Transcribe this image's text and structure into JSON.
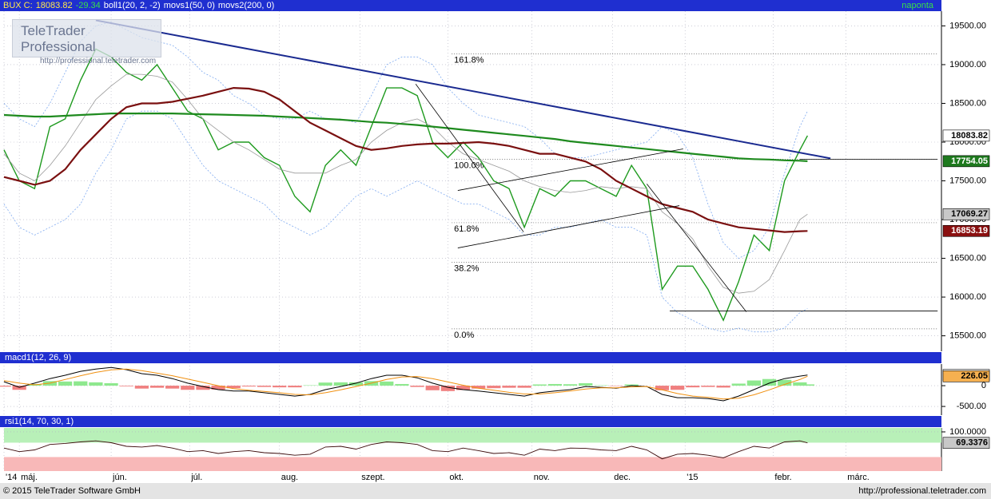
{
  "chart_data": {
    "type": "financial",
    "header": {
      "instrument": "BUX C:",
      "change": -29.34,
      "indicators": [
        "boll1(20, 2, -2)",
        "movs1(50, 0)",
        "movs2(200, 0)"
      ],
      "period": "naponta"
    },
    "x": [
      0,
      4,
      8,
      12,
      16,
      20,
      24,
      28,
      32,
      36,
      40,
      44,
      48,
      52,
      56,
      60,
      64,
      68,
      72,
      76,
      80,
      84,
      88,
      92,
      96,
      100,
      104,
      108,
      112,
      116,
      120,
      124,
      128,
      132,
      136,
      140,
      144,
      148,
      152,
      156,
      160,
      164,
      168,
      172,
      176,
      180,
      184,
      188,
      192,
      196,
      200,
      204,
      208,
      210
    ],
    "xlim": [
      0,
      245
    ],
    "xticks": [
      {
        "value": 0,
        "label": "'14"
      },
      {
        "value": 4,
        "label": "máj."
      },
      {
        "value": 28,
        "label": "jún."
      },
      {
        "value": 48.5,
        "label": "júl."
      },
      {
        "value": 72,
        "label": "aug."
      },
      {
        "value": 93,
        "label": "szept."
      },
      {
        "value": 116,
        "label": "okt."
      },
      {
        "value": 138,
        "label": "nov."
      },
      {
        "value": 159,
        "label": "dec."
      },
      {
        "value": 178,
        "label": "'15"
      },
      {
        "value": 201,
        "label": "febr."
      },
      {
        "value": 220,
        "label": "márc."
      }
    ],
    "grid": true,
    "panels": [
      {
        "type": "line",
        "ylim": [
          15300,
          19690
        ],
        "yticks": [
          {
            "value": 15500,
            "label": "15500.00"
          },
          {
            "value": 16000,
            "label": "16000.00"
          },
          {
            "value": 16500,
            "label": "16500.00"
          },
          {
            "value": 17000,
            "label": "17000.00"
          },
          {
            "value": 17500,
            "label": "17500.00"
          },
          {
            "value": 18000,
            "label": "18000.00"
          },
          {
            "value": 18500,
            "label": "18500.00"
          },
          {
            "value": 19000,
            "label": "19000.00"
          },
          {
            "value": 19500,
            "label": "19500.00"
          }
        ],
        "series": [
          {
            "color": "#1e9a1e",
            "width": 1.4,
            "last_label": true,
            "box": "#ffffff",
            "box_text": "#000000",
            "values": [
              17900,
              17500,
              17400,
              18200,
              18300,
              18800,
              19200,
              19100,
              18900,
              18800,
              19000,
              18700,
              18400,
              18300,
              17900,
              18000,
              18000,
              17800,
              17700,
              17300,
              17100,
              17700,
              17900,
              17700,
              18200,
              18700,
              18700,
              18600,
              18000,
              17800,
              18000,
              17800,
              17500,
              17400,
              16900,
              17400,
              17300,
              17500,
              17500,
              17400,
              17300,
              17700,
              17400,
              16100,
              16400,
              16400,
              16100,
              15700,
              16200,
              16800,
              16600,
              17500,
              17900,
              18083.82
            ]
          },
          {
            "color": "#7faaf0",
            "width": 0.8,
            "dash": true,
            "values": [
              18500,
              18300,
              18200,
              18500,
              18900,
              19300,
              19500,
              19550,
              19450,
              19350,
              19300,
              19250,
              19100,
              18900,
              18800,
              18600,
              18500,
              18350,
              18300,
              18300,
              18400,
              18300,
              18300,
              18250,
              18600,
              19000,
              19100,
              19100,
              19000,
              18700,
              18500,
              18350,
              18300,
              18250,
              18200,
              18050,
              17850,
              17800,
              17800,
              17850,
              17900,
              17950,
              18000,
              18200,
              18100,
              17800,
              17200,
              16700,
              16500,
              16600,
              16900,
              17600,
              18200,
              18400
            ]
          },
          {
            "color": "#7faaf0",
            "width": 0.8,
            "dash": true,
            "values": [
              17200,
              16900,
              16800,
              16900,
              17000,
              17200,
              17600,
              17900,
              18300,
              18400,
              18400,
              18300,
              18000,
              17700,
              17500,
              17400,
              17300,
              17200,
              17000,
              16900,
              16800,
              16900,
              17100,
              17300,
              17400,
              17300,
              17400,
              17500,
              17400,
              17300,
              17200,
              17200,
              17100,
              17000,
              16800,
              16800,
              16900,
              16900,
              16950,
              17000,
              16900,
              16900,
              16800,
              16000,
              15800,
              15700,
              15600,
              15550,
              15600,
              15550,
              15550,
              15600,
              15800,
              15850
            ]
          },
          {
            "color": "#999999",
            "width": 0.8,
            "last_label": true,
            "box": "#c8c8c8",
            "box_text": "#000000",
            "values": [
              17850,
              17600,
              17500,
              17700,
              17950,
              18250,
              18550,
              18725,
              18875,
              18875,
              18850,
              18775,
              18550,
              18300,
              18150,
              18000,
              17900,
              17775,
              17650,
              17600,
              17600,
              17600,
              17700,
              17775,
              18000,
              18150,
              18250,
              18300,
              18200,
              18000,
              17850,
              17775,
              17700,
              17625,
              17500,
              17425,
              17375,
              17350,
              17375,
              17425,
              17400,
              17425,
              17400,
              17100,
              16950,
              16750,
              16400,
              16125,
              16050,
              16075,
              16225,
              16600,
              17000,
              17069.27
            ]
          },
          {
            "color": "#1e8a1e",
            "width": 2.2,
            "last_label": true,
            "box": "#1e7a1e",
            "box_text": "#ffffff",
            "values": [
              18350,
              18340,
              18330,
              18330,
              18340,
              18350,
              18360,
              18370,
              18370,
              18370,
              18370,
              18370,
              18365,
              18360,
              18355,
              18350,
              18345,
              18340,
              18330,
              18320,
              18310,
              18300,
              18290,
              18275,
              18260,
              18250,
              18235,
              18220,
              18200,
              18180,
              18160,
              18140,
              18120,
              18100,
              18080,
              18060,
              18040,
              18010,
              17990,
              17970,
              17950,
              17930,
              17910,
              17890,
              17870,
              17850,
              17830,
              17810,
              17790,
              17780,
              17775,
              17765,
              17760,
              17754.05
            ]
          },
          {
            "color": "#7a1010",
            "width": 2.2,
            "last_label": true,
            "box": "#8a1010",
            "box_text": "#ffffff",
            "values": [
              17550,
              17500,
              17450,
              17500,
              17650,
              17900,
              18100,
              18300,
              18450,
              18500,
              18500,
              18520,
              18560,
              18600,
              18650,
              18700,
              18690,
              18650,
              18550,
              18400,
              18250,
              18150,
              18050,
              17950,
              17900,
              17920,
              17950,
              17970,
              17980,
              17980,
              17990,
              18000,
              17980,
              17950,
              17900,
              17850,
              17850,
              17800,
              17750,
              17650,
              17500,
              17400,
              17300,
              17200,
              17150,
              17100,
              17000,
              16950,
              16900,
              16880,
              16860,
              16840,
              16850,
              16853.19
            ]
          }
        ],
        "trend_lines": [
          {
            "color": "#1a2a90",
            "width": 2,
            "x": [
              24,
              216
            ],
            "values": [
              19572,
              17790
            ]
          },
          {
            "color": "#000000",
            "width": 0.8,
            "x": [
              118.6,
              176.5
            ],
            "values": [
              16634,
              17180
            ]
          },
          {
            "color": "#000000",
            "width": 0.8,
            "x": [
              118.6,
              177.5
            ],
            "values": [
              17376,
              17912
            ]
          },
          {
            "color": "#000000",
            "width": 0.8,
            "x": [
              107.6,
              135.8
            ],
            "values": [
              18750,
              16840
            ]
          },
          {
            "color": "#000000",
            "width": 0.8,
            "x": [
              168,
              194
            ],
            "values": [
              17460,
              15810
            ]
          },
          {
            "color": "#000000",
            "width": 0.8,
            "x": [
              174,
              244
            ],
            "values": [
              15820,
              15820
            ]
          },
          {
            "color": "#000000",
            "width": 0.8,
            "x": [
              208,
              244
            ],
            "values": [
              17780,
              17780
            ]
          }
        ],
        "fib_xlim": [
          117,
          244
        ],
        "fib_levels": [
          {
            "label": "161.8%",
            "value": 19140
          },
          {
            "label": "100.0%",
            "value": 17780
          },
          {
            "label": "61.8%",
            "value": 16960
          },
          {
            "label": "38.2%",
            "value": 16450
          },
          {
            "label": "0.0%",
            "value": 15590
          }
        ]
      },
      {
        "type": "line",
        "title": "macd1(12, 26, 9)",
        "ylim": [
          -710,
          520
        ],
        "yticks": [
          0,
          {
            "value": -500,
            "label": "-500.00"
          }
        ],
        "series": [
          {
            "style": "bar",
            "color_up": "#8ee88e",
            "color_down": "#f08080",
            "values": [
              -24,
              -100,
              40,
              110,
              100,
              105,
              80,
              60,
              -15,
              -70,
              -50,
              -70,
              -100,
              -100,
              -95,
              -60,
              -20,
              -30,
              -40,
              -40,
              10,
              75,
              80,
              80,
              110,
              100,
              40,
              -30,
              -110,
              -130,
              -105,
              -70,
              -60,
              -50,
              -50,
              30,
              40,
              35,
              60,
              10,
              -10,
              30,
              0,
              -110,
              -100,
              -40,
              -30,
              -45,
              50,
              125,
              160,
              140,
              80,
              31.37
            ]
          },
          {
            "color": "#000000",
            "width": 1,
            "last_label": true,
            "box": "#ffffff",
            "box_text": "#000000",
            "values": [
              96,
              -40,
              60,
              170,
              250,
              345,
              400,
              440,
              385,
              290,
              250,
              170,
              60,
              -20,
              -95,
              -130,
              -130,
              -170,
              -210,
              -250,
              -210,
              -95,
              -20,
              60,
              170,
              250,
              250,
              190,
              60,
              -40,
              -95,
              -130,
              -170,
              -210,
              -250,
              -170,
              -130,
              -95,
              -20,
              -40,
              -60,
              0,
              -20,
              -210,
              -290,
              -290,
              -310,
              -365,
              -250,
              -95,
              60,
              170,
              230,
              257.42
            ]
          },
          {
            "color": "#f09010",
            "width": 1,
            "last_label": true,
            "box": "#f5b050",
            "box_text": "#000000",
            "values": [
              120,
              60,
              20,
              60,
              150,
              240,
              320,
              380,
              400,
              360,
              300,
              240,
              160,
              80,
              0,
              -70,
              -110,
              -140,
              -170,
              -210,
              -220,
              -170,
              -100,
              -20,
              60,
              150,
              210,
              220,
              170,
              90,
              10,
              -60,
              -110,
              -160,
              -200,
              -200,
              -170,
              -130,
              -80,
              -50,
              -50,
              -30,
              -20,
              -100,
              -190,
              -250,
              -280,
              -320,
              -300,
              -220,
              -100,
              30,
              150,
              226.05
            ]
          }
        ]
      },
      {
        "type": "line",
        "title": "rsi1(14, 70, 30, 1)",
        "ylim": [
          -9,
          111
        ],
        "yticks": [
          {
            "value": 100,
            "label": "100.0000"
          }
        ],
        "bands": [
          {
            "from": 70,
            "to": 111,
            "color": "#b8f0b8"
          },
          {
            "from": -9,
            "to": 30,
            "color": "#f8b8b8"
          }
        ],
        "series": [
          {
            "color": "#3a0a0a",
            "width": 0.9,
            "last_label": true,
            "box": "#c8c8c8",
            "box_text": "#000000",
            "values": [
              55,
              45,
              50,
              65,
              68,
              72,
              75,
              70,
              60,
              58,
              62,
              55,
              45,
              48,
              40,
              45,
              48,
              42,
              40,
              35,
              38,
              58,
              60,
              52,
              65,
              72,
              70,
              65,
              48,
              45,
              55,
              48,
              40,
              42,
              35,
              52,
              48,
              55,
              54,
              50,
              48,
              60,
              50,
              25,
              38,
              40,
              35,
              28,
              45,
              60,
              55,
              72,
              75,
              69.3376
            ]
          }
        ]
      }
    ]
  },
  "watermark": {
    "title": "TeleTrader Professional",
    "url": "http://professional.teletrader.com"
  },
  "footer": {
    "copyright": "© 2015 TeleTrader Software GmbH",
    "url": "http://professional.teletrader.com"
  }
}
